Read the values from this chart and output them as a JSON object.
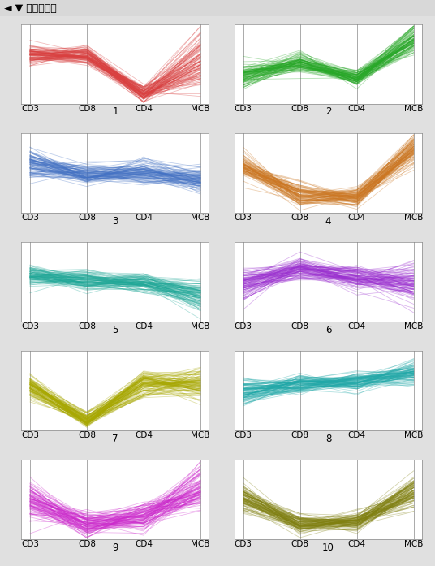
{
  "title": "平行坐标图",
  "axes_labels": [
    "CD3",
    "CD8",
    "CD4",
    "MCB"
  ],
  "n_clusters": 10,
  "cluster_colors": [
    "#D94040",
    "#28A828",
    "#4472C4",
    "#CC7722",
    "#20A898",
    "#9B30D0",
    "#A8A800",
    "#20A8A8",
    "#CC28CC",
    "#808010"
  ],
  "cluster_params": [
    {
      "means": [
        0.62,
        0.62,
        0.12,
        0.52
      ],
      "stds": [
        0.06,
        0.06,
        0.06,
        0.18
      ],
      "n": 100
    },
    {
      "means": [
        0.35,
        0.52,
        0.32,
        0.82
      ],
      "stds": [
        0.08,
        0.07,
        0.05,
        0.1
      ],
      "n": 100
    },
    {
      "means": [
        0.62,
        0.48,
        0.52,
        0.42
      ],
      "stds": [
        0.1,
        0.07,
        0.08,
        0.08
      ],
      "n": 100
    },
    {
      "means": [
        0.58,
        0.22,
        0.18,
        0.8
      ],
      "stds": [
        0.08,
        0.07,
        0.06,
        0.1
      ],
      "n": 100
    },
    {
      "means": [
        0.58,
        0.52,
        0.48,
        0.32
      ],
      "stds": [
        0.06,
        0.06,
        0.06,
        0.1
      ],
      "n": 100
    },
    {
      "means": [
        0.48,
        0.68,
        0.55,
        0.48
      ],
      "stds": [
        0.1,
        0.08,
        0.08,
        0.12
      ],
      "n": 100
    },
    {
      "means": [
        0.55,
        0.12,
        0.58,
        0.58
      ],
      "stds": [
        0.07,
        0.05,
        0.09,
        0.1
      ],
      "n": 100
    },
    {
      "means": [
        0.48,
        0.58,
        0.62,
        0.72
      ],
      "stds": [
        0.08,
        0.06,
        0.06,
        0.08
      ],
      "n": 100
    },
    {
      "means": [
        0.48,
        0.18,
        0.28,
        0.65
      ],
      "stds": [
        0.12,
        0.08,
        0.1,
        0.15
      ],
      "n": 100
    },
    {
      "means": [
        0.52,
        0.18,
        0.22,
        0.58
      ],
      "stds": [
        0.08,
        0.06,
        0.06,
        0.12
      ],
      "n": 100
    }
  ],
  "background_color": "#FFFFFF",
  "grid_color": "#AAAAAA",
  "fig_bg_color": "#E0E0E0",
  "title_prefix": "◄ ▼ "
}
